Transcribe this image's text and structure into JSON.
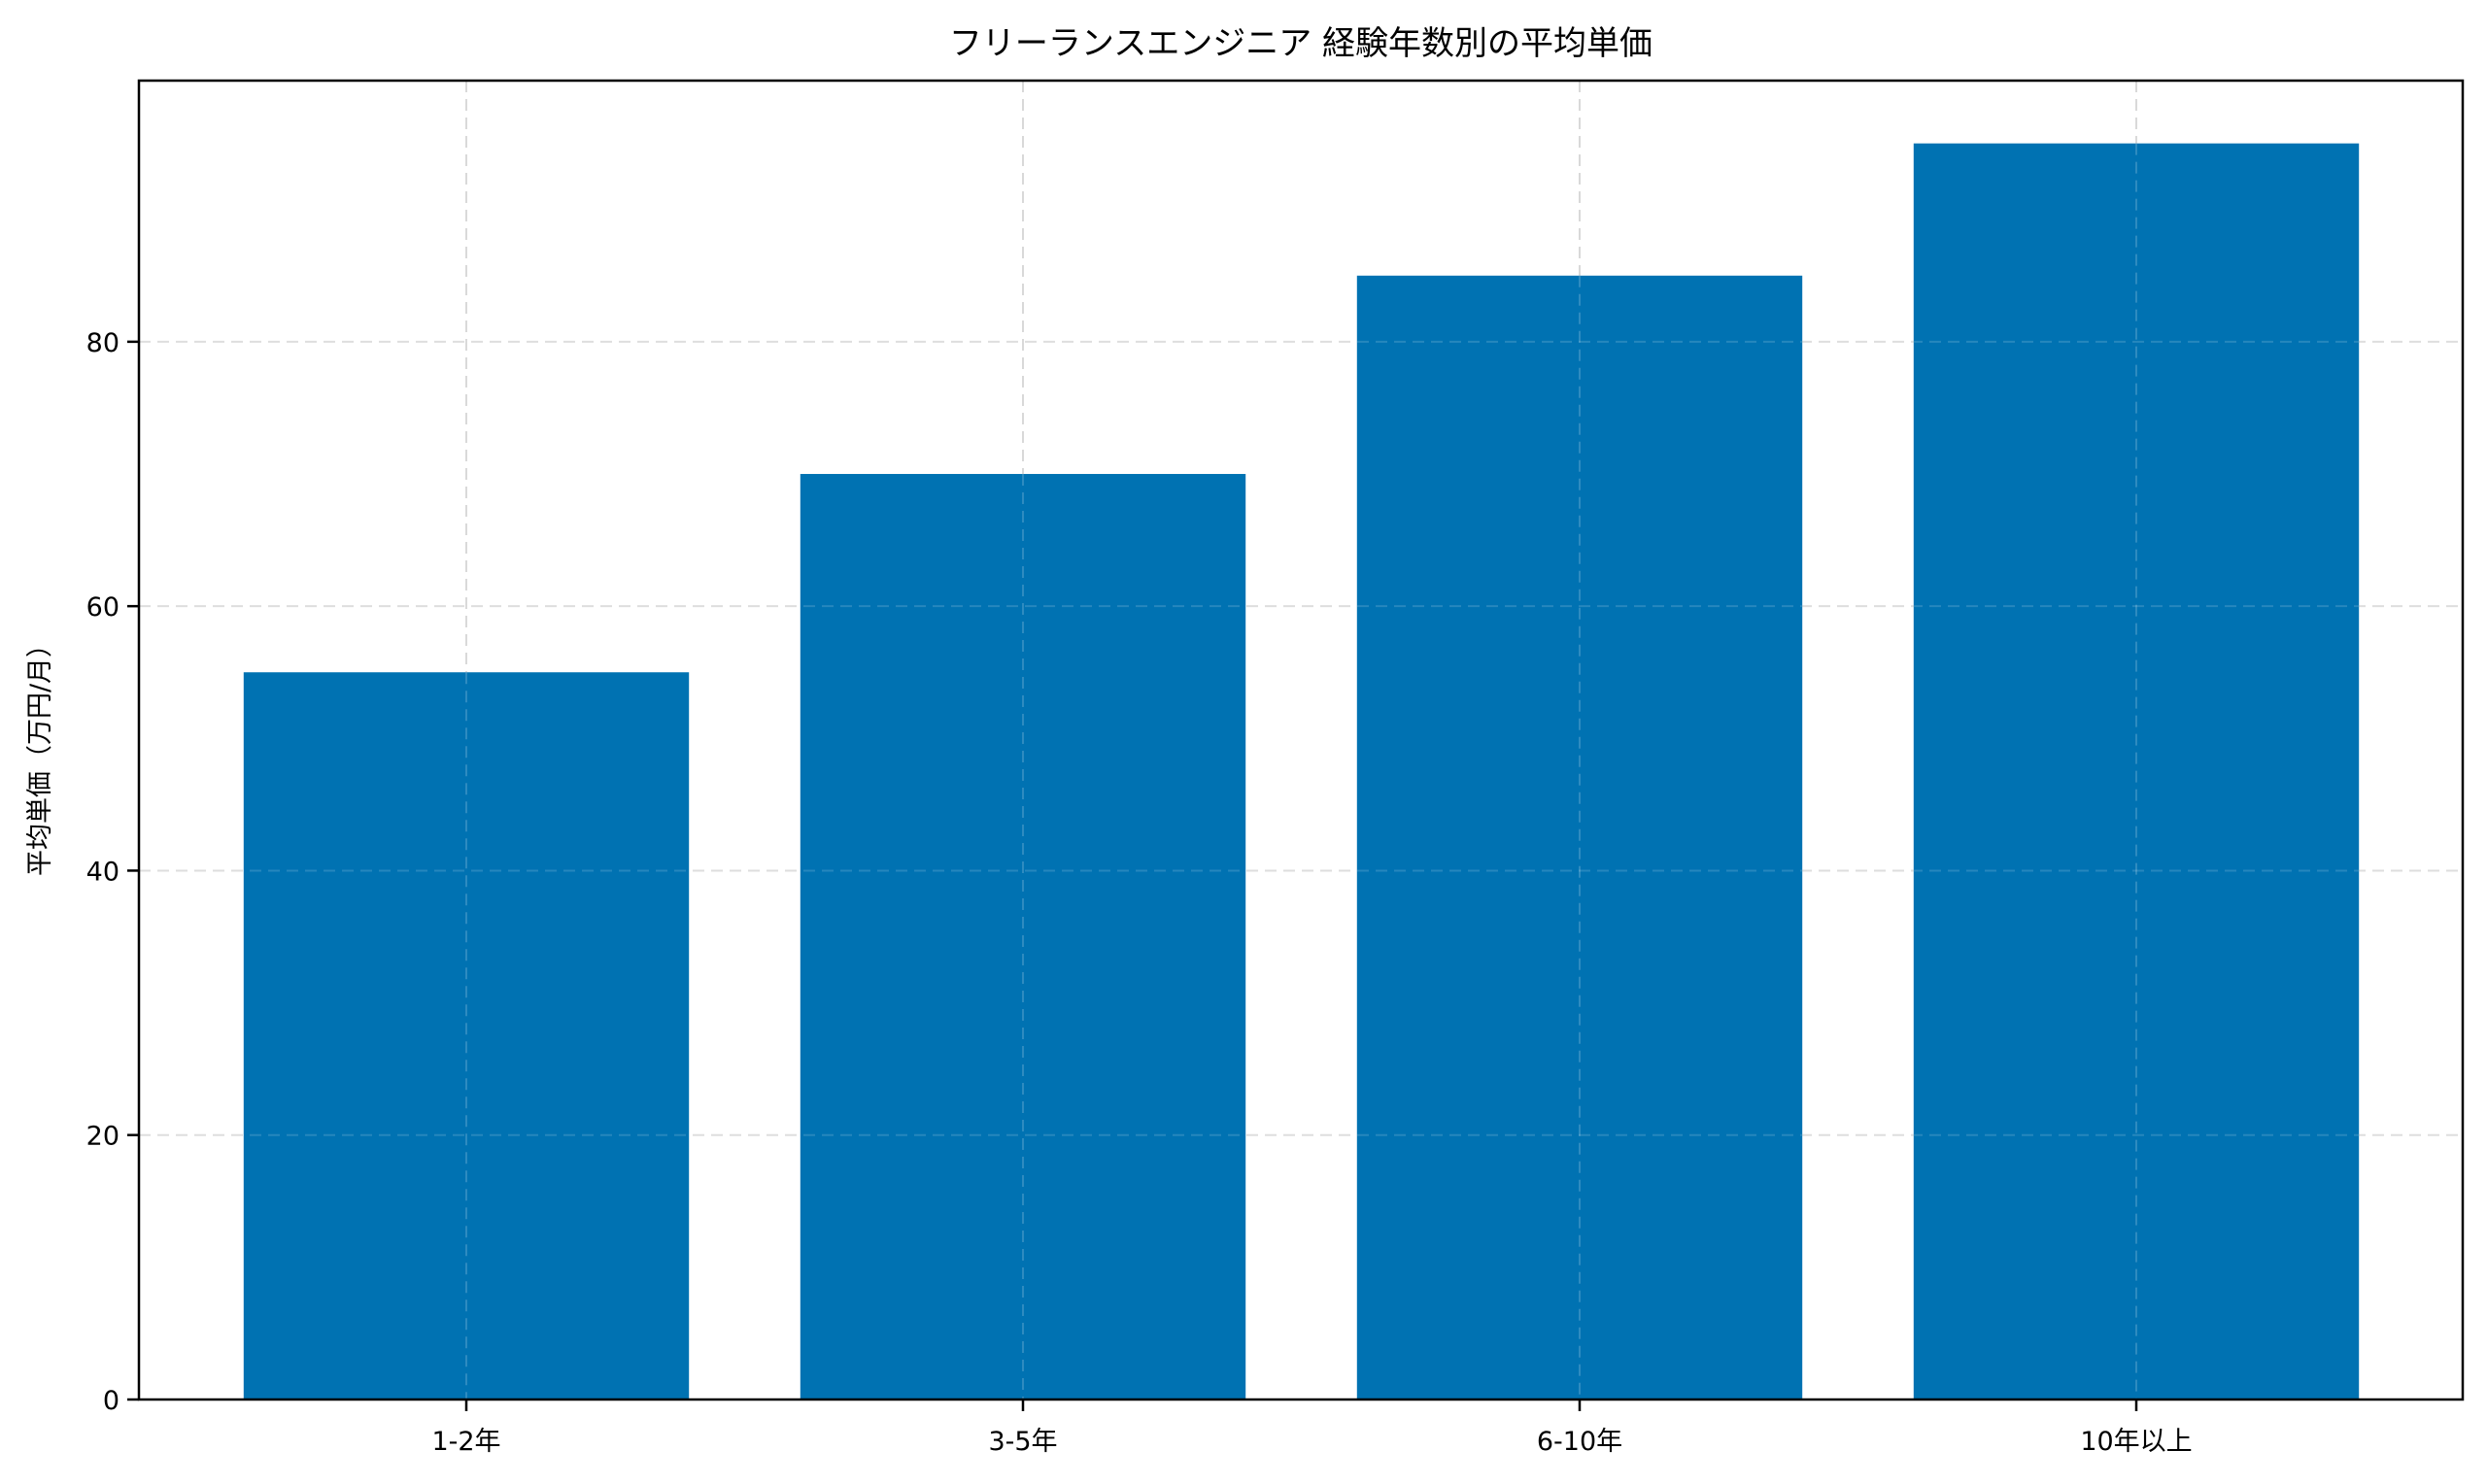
{
  "chart_data": {
    "type": "bar",
    "title": "フリーランスエンジニア 経験年数別の平均単価",
    "xlabel": "",
    "ylabel": "平均単価（万円/月）",
    "categories": [
      "1-2年",
      "3-5年",
      "6-10年",
      "10年以上"
    ],
    "values": [
      55,
      70,
      85,
      95
    ],
    "ylim": [
      0,
      99.75
    ],
    "yticks": [
      0,
      20,
      40,
      60,
      80
    ],
    "grid": true,
    "grid_style": "dashed",
    "legend": null,
    "bar_color": "#0072B2"
  },
  "colors": {
    "bar": "#0072B2",
    "grid": "#d9d9d9",
    "axis": "#000000",
    "background": "#ffffff"
  }
}
